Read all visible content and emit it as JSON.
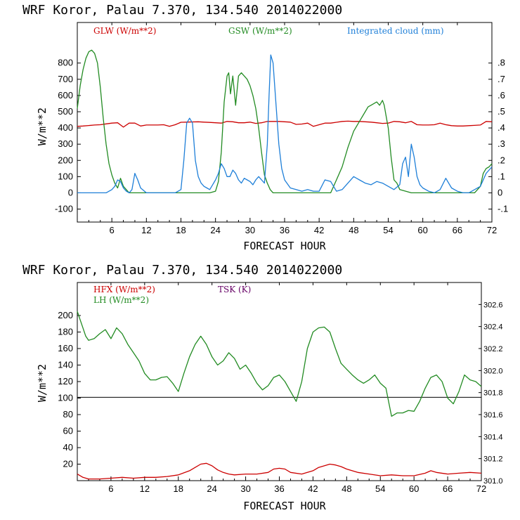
{
  "chart_data": [
    {
      "type": "line",
      "title": "WRF   Koror, Palau   7.370, 134.540  2014022000",
      "xlabel": "FORECAST HOUR",
      "ylabel": "W/m**2",
      "xlim": [
        0,
        72
      ],
      "ylim": [
        -180,
        1050
      ],
      "x_ticks": [
        6,
        12,
        18,
        24,
        30,
        36,
        42,
        48,
        54,
        60,
        66,
        72
      ],
      "y_ticks": [
        -100,
        0,
        100,
        200,
        300,
        400,
        500,
        600,
        700,
        800
      ],
      "y2lim": [
        -0.18,
        1.05
      ],
      "y2_ticks": [
        ".8",
        ".7",
        ".6",
        ".5",
        ".4",
        ".3",
        ".2",
        ".1",
        "0",
        "-.1"
      ],
      "y2_tick_values": [
        0.8,
        0.7,
        0.6,
        0.5,
        0.4,
        0.3,
        0.2,
        0.1,
        0,
        -0.1
      ],
      "legend": [
        "GLW (W/m**2)",
        "GSW (W/m**2)",
        "Integrated cloud (mm)"
      ],
      "colors": [
        "#cc0000",
        "#228b22",
        "#1e7fd8"
      ],
      "series": [
        {
          "name": "GLW (W/m**2)",
          "axis": "left",
          "x": [
            0,
            1,
            2,
            3,
            4,
            5,
            6,
            7,
            8,
            9,
            10,
            11,
            12,
            13,
            14,
            15,
            16,
            17,
            18,
            19,
            20,
            21,
            22,
            23,
            24,
            25,
            26,
            27,
            28,
            29,
            30,
            31,
            32,
            33,
            34,
            35,
            36,
            37,
            38,
            39,
            40,
            41,
            42,
            43,
            44,
            45,
            46,
            47,
            48,
            49,
            50,
            51,
            52,
            53,
            54,
            55,
            56,
            57,
            58,
            59,
            60,
            61,
            62,
            63,
            64,
            65,
            66,
            67,
            68,
            69,
            70,
            71,
            72
          ],
          "y": [
            410,
            412,
            415,
            418,
            420,
            425,
            430,
            432,
            405,
            430,
            430,
            412,
            418,
            418,
            418,
            420,
            410,
            420,
            435,
            436,
            437,
            438,
            436,
            434,
            432,
            430,
            440,
            438,
            432,
            432,
            436,
            428,
            432,
            440,
            440,
            440,
            438,
            436,
            422,
            424,
            430,
            410,
            420,
            430,
            430,
            435,
            440,
            442,
            440,
            440,
            438,
            436,
            432,
            428,
            430,
            440,
            438,
            432,
            440,
            420,
            418,
            418,
            420,
            430,
            420,
            414,
            412,
            412,
            414,
            416,
            418,
            440,
            438
          ]
        },
        {
          "name": "GSW (W/m**2)",
          "axis": "left",
          "x": [
            0,
            0.5,
            1,
            1.5,
            2,
            2.5,
            3,
            3.5,
            4,
            4.5,
            5,
            5.5,
            6,
            6.5,
            7,
            7.5,
            8,
            8.5,
            9,
            10,
            12,
            16,
            18,
            19,
            20,
            21,
            22,
            23,
            24,
            24.5,
            25,
            25.5,
            26,
            26.3,
            26.6,
            27,
            27.5,
            28,
            28.5,
            29,
            29.5,
            30,
            30.5,
            31,
            31.5,
            32,
            32.5,
            33,
            33.5,
            34,
            35,
            36,
            40,
            44,
            45,
            46,
            47,
            48,
            49,
            50,
            50.5,
            51,
            51.5,
            52,
            52.5,
            53,
            53.3,
            53.6,
            54,
            54.5,
            55,
            55.5,
            56,
            58,
            64,
            68,
            69,
            70,
            70.5,
            71,
            71.5,
            72
          ],
          "y": [
            520,
            660,
            760,
            830,
            870,
            880,
            860,
            800,
            650,
            460,
            300,
            180,
            110,
            60,
            30,
            90,
            40,
            20,
            0,
            0,
            0,
            0,
            0,
            0,
            0,
            0,
            0,
            0,
            10,
            70,
            250,
            560,
            720,
            740,
            610,
            720,
            540,
            720,
            740,
            720,
            700,
            660,
            600,
            520,
            400,
            250,
            110,
            60,
            20,
            0,
            0,
            0,
            0,
            0,
            80,
            160,
            280,
            380,
            440,
            500,
            530,
            540,
            550,
            560,
            540,
            570,
            540,
            480,
            400,
            220,
            80,
            60,
            20,
            0,
            0,
            0,
            0,
            40,
            120,
            150,
            160,
            180
          ]
        },
        {
          "name": "Integrated cloud (mm)",
          "axis": "right",
          "x": [
            0,
            4,
            5,
            6,
            6.5,
            7,
            7.5,
            8,
            8.5,
            9,
            9.5,
            10,
            10.5,
            11,
            12,
            14,
            16,
            17,
            18,
            18.5,
            19,
            19.5,
            20,
            20.5,
            21,
            21.5,
            22,
            22.5,
            23,
            23.5,
            24,
            24.5,
            25,
            25.5,
            26,
            26.5,
            27,
            27.5,
            28,
            28.5,
            29,
            29.5,
            30,
            30.5,
            31,
            31.5,
            32,
            32.5,
            33,
            33.3,
            33.6,
            34,
            34.5,
            35,
            35.5,
            36,
            37,
            38,
            39,
            40,
            41,
            42,
            43,
            44,
            45,
            46,
            47,
            48,
            49,
            50,
            51,
            52,
            53,
            54,
            55,
            56,
            56.5,
            57,
            57.5,
            58,
            58.5,
            59,
            59.5,
            60,
            61,
            62,
            63,
            64,
            65,
            66,
            67,
            68,
            69,
            70,
            71,
            72
          ],
          "y": [
            0,
            0,
            0,
            0.02,
            0.04,
            0.08,
            0.07,
            0.03,
            0.01,
            0,
            0.02,
            0.12,
            0.08,
            0.03,
            0,
            0,
            0,
            0,
            0.02,
            0.2,
            0.43,
            0.46,
            0.43,
            0.2,
            0.1,
            0.06,
            0.04,
            0.03,
            0.02,
            0.05,
            0.08,
            0.12,
            0.18,
            0.15,
            0.1,
            0.1,
            0.14,
            0.12,
            0.08,
            0.06,
            0.09,
            0.08,
            0.07,
            0.05,
            0.08,
            0.1,
            0.08,
            0.06,
            0.3,
            0.6,
            0.85,
            0.8,
            0.55,
            0.3,
            0.15,
            0.08,
            0.03,
            0.02,
            0.01,
            0.02,
            0.01,
            0.01,
            0.08,
            0.07,
            0.01,
            0.02,
            0.06,
            0.1,
            0.08,
            0.06,
            0.05,
            0.07,
            0.06,
            0.04,
            0.02,
            0.05,
            0.18,
            0.22,
            0.1,
            0.3,
            0.22,
            0.1,
            0.05,
            0.03,
            0.01,
            0,
            0.02,
            0.09,
            0.03,
            0.01,
            0,
            0,
            0.02,
            0.04,
            0.12,
            0.16
          ]
        }
      ]
    },
    {
      "type": "line",
      "title": "WRF   Koror, Palau   7.370, 134.540  2014022000",
      "xlabel": "FORECAST HOUR",
      "ylabel": "W/m**2",
      "xlim": [
        0,
        72
      ],
      "ylim": [
        0,
        240
      ],
      "x_ticks": [
        6,
        12,
        18,
        24,
        30,
        36,
        42,
        48,
        54,
        60,
        66,
        72
      ],
      "y_ticks": [
        20,
        40,
        60,
        80,
        100,
        120,
        140,
        160,
        180,
        200
      ],
      "y2lim": [
        301.0,
        302.8
      ],
      "y2_ticks": [
        "302.6",
        "302.4",
        "302.2",
        "302.0",
        "301.8",
        "301.6",
        "301.4",
        "301.2",
        "301.0"
      ],
      "y2_tick_values": [
        302.6,
        302.4,
        302.2,
        302.0,
        301.8,
        301.6,
        301.4,
        301.2,
        301.0
      ],
      "legend": [
        "HFX (W/m**2)",
        "LH  (W/m**2)",
        "TSK (K)"
      ],
      "colors": [
        "#cc0000",
        "#228b22",
        "#660066"
      ],
      "reference_line": 101,
      "series": [
        {
          "name": "HFX (W/m**2)",
          "axis": "left",
          "x": [
            0,
            1,
            2,
            4,
            6,
            8,
            10,
            12,
            14,
            16,
            18,
            20,
            21,
            22,
            23,
            24,
            25,
            26,
            27,
            28,
            30,
            32,
            34,
            35,
            36,
            37,
            38,
            40,
            42,
            43,
            44,
            45,
            46,
            47,
            48,
            50,
            52,
            54,
            56,
            58,
            60,
            62,
            63,
            64,
            66,
            68,
            70,
            72
          ],
          "y": [
            8,
            4,
            2,
            2,
            3,
            4,
            3,
            4,
            4,
            5,
            7,
            12,
            16,
            20,
            21,
            18,
            13,
            10,
            8,
            7,
            8,
            8,
            10,
            14,
            15,
            14,
            10,
            8,
            12,
            16,
            18,
            20,
            19,
            17,
            14,
            10,
            8,
            6,
            7,
            6,
            6,
            9,
            12,
            10,
            8,
            9,
            10,
            9
          ]
        },
        {
          "name": "LH  (W/m**2)",
          "axis": "left",
          "x": [
            0,
            0.5,
            1,
            1.5,
            2,
            3,
            4,
            5,
            6,
            7,
            8,
            9,
            10,
            11,
            12,
            13,
            14,
            15,
            16,
            17,
            18,
            19,
            20,
            21,
            22,
            23,
            24,
            25,
            26,
            27,
            28,
            29,
            30,
            31,
            32,
            33,
            34,
            35,
            36,
            37,
            38,
            39,
            40,
            41,
            42,
            43,
            44,
            45,
            46,
            47,
            48,
            49,
            50,
            51,
            52,
            53,
            54,
            55,
            56,
            57,
            58,
            59,
            60,
            61,
            62,
            63,
            64,
            65,
            66,
            67,
            68,
            69,
            70,
            71,
            72
          ],
          "y": [
            205,
            195,
            185,
            175,
            170,
            172,
            178,
            183,
            172,
            185,
            178,
            165,
            155,
            145,
            130,
            122,
            122,
            125,
            126,
            118,
            108,
            130,
            150,
            165,
            175,
            165,
            150,
            140,
            145,
            155,
            148,
            135,
            140,
            130,
            118,
            110,
            115,
            125,
            128,
            120,
            108,
            96,
            120,
            160,
            180,
            185,
            186,
            180,
            160,
            142,
            135,
            128,
            122,
            118,
            122,
            128,
            118,
            112,
            78,
            82,
            82,
            85,
            84,
            96,
            112,
            125,
            128,
            120,
            100,
            93,
            108,
            128,
            122,
            120,
            114
          ]
        }
      ]
    }
  ]
}
